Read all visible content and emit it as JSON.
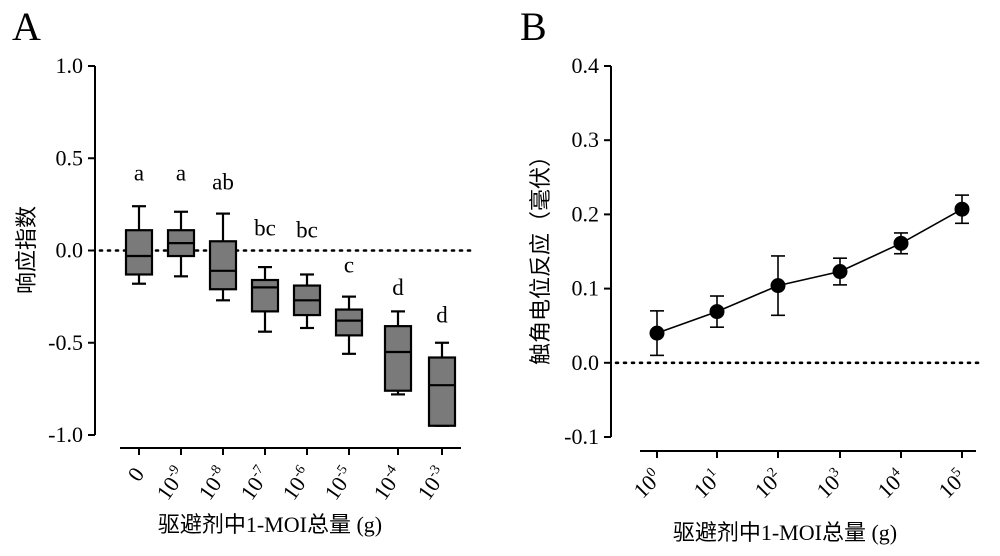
{
  "chart_data": [
    {
      "panel": "A",
      "type": "box",
      "xlabel": "驱避剂中1-MOI总量 (g)",
      "ylabel": "响应指数",
      "ylim": [
        -1.0,
        1.0
      ],
      "yticks": [
        "1.0",
        "0.5",
        "0.0",
        "-0.5",
        "-1.0"
      ],
      "ytick_values": [
        1.0,
        0.5,
        0.0,
        -0.5,
        -1.0
      ],
      "reference_line": 0.0,
      "categories": [
        {
          "base": "0",
          "exp": ""
        },
        {
          "base": "10",
          "exp": "-9"
        },
        {
          "base": "10",
          "exp": "-8"
        },
        {
          "base": "10",
          "exp": "-7"
        },
        {
          "base": "10",
          "exp": "-6"
        },
        {
          "base": "10",
          "exp": "-5"
        },
        {
          "base": "10",
          "exp": "-4"
        },
        {
          "base": "10",
          "exp": "-3"
        }
      ],
      "boxes": [
        {
          "min": -0.18,
          "q1": -0.13,
          "median": -0.03,
          "q3": 0.11,
          "max": 0.24
        },
        {
          "min": -0.14,
          "q1": -0.03,
          "median": 0.04,
          "q3": 0.11,
          "max": 0.21
        },
        {
          "min": -0.27,
          "q1": -0.21,
          "median": -0.11,
          "q3": 0.05,
          "max": 0.2
        },
        {
          "min": -0.44,
          "q1": -0.33,
          "median": -0.2,
          "q3": -0.16,
          "max": -0.09
        },
        {
          "min": -0.42,
          "q1": -0.35,
          "median": -0.27,
          "q3": -0.19,
          "max": -0.13
        },
        {
          "min": -0.56,
          "q1": -0.46,
          "median": -0.38,
          "q3": -0.32,
          "max": -0.25
        },
        {
          "min": -0.78,
          "q1": -0.76,
          "median": -0.55,
          "q3": -0.41,
          "max": -0.33
        },
        {
          "min": -0.95,
          "q1": -0.95,
          "median": -0.73,
          "q3": -0.58,
          "max": -0.5
        }
      ],
      "significance": [
        "a",
        "a",
        "ab",
        "bc",
        "bc",
        "c",
        "d",
        "d"
      ],
      "significance_y": [
        0.38,
        0.38,
        0.33,
        0.08,
        0.07,
        -0.12,
        -0.24,
        -0.39
      ]
    },
    {
      "panel": "B",
      "type": "line",
      "xlabel": "驱避剂中1-MOI总量 (g)",
      "ylabel": "触角电位反应（毫伏）",
      "ylim": [
        -0.1,
        0.4
      ],
      "yticks": [
        "0.4",
        "0.3",
        "0.2",
        "0.1",
        "0.0",
        "-0.1"
      ],
      "ytick_values": [
        0.4,
        0.3,
        0.2,
        0.1,
        0.0,
        -0.1
      ],
      "reference_line": 0.0,
      "categories": [
        {
          "base": "10",
          "exp": "0"
        },
        {
          "base": "10",
          "exp": "1"
        },
        {
          "base": "10",
          "exp": "2"
        },
        {
          "base": "10",
          "exp": "3"
        },
        {
          "base": "10",
          "exp": "4"
        },
        {
          "base": "10",
          "exp": "5"
        }
      ],
      "values": [
        0.04,
        0.069,
        0.104,
        0.123,
        0.161,
        0.207
      ],
      "errors": [
        0.03,
        0.021,
        0.04,
        0.018,
        0.014,
        0.019
      ]
    }
  ],
  "labels": {
    "panel_a": "A",
    "panel_b": "B"
  }
}
